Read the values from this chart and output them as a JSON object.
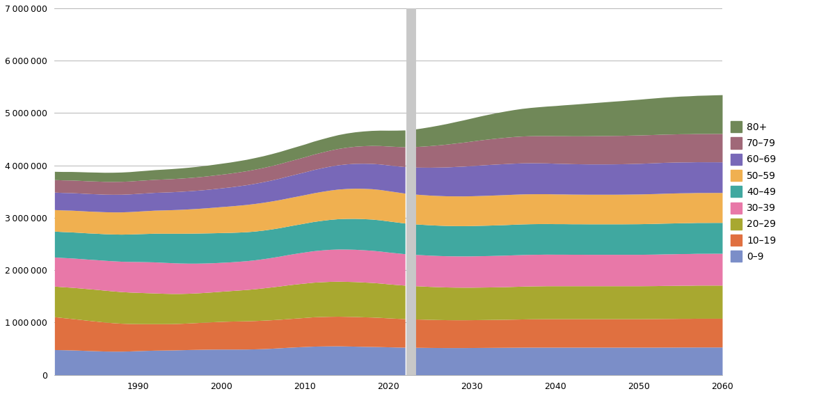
{
  "colors": {
    "0-9": "#7b8ec8",
    "10-19": "#e07040",
    "20-29": "#a8a830",
    "30-39": "#e878a8",
    "40-49": "#40a8a0",
    "50-59": "#f0b050",
    "60-69": "#7868b8",
    "70-79": "#a06878",
    "80+": "#708858"
  },
  "divider_year": 2022.7,
  "divider_color": "#c8c8c8",
  "background_color": "#ffffff",
  "ylim": [
    0,
    7000000
  ],
  "yticks": [
    0,
    1000000,
    2000000,
    3000000,
    4000000,
    5000000,
    6000000,
    7000000
  ],
  "xlim": [
    1980,
    2060
  ],
  "xticks": [
    1990,
    2000,
    2010,
    2020,
    2030,
    2040,
    2050,
    2060
  ],
  "hist_years": [
    1980,
    1981,
    1982,
    1983,
    1984,
    1985,
    1986,
    1987,
    1988,
    1989,
    1990,
    1991,
    1992,
    1993,
    1994,
    1995,
    1996,
    1997,
    1998,
    1999,
    2000,
    2001,
    2002,
    2003,
    2004,
    2005,
    2006,
    2007,
    2008,
    2009,
    2010,
    2011,
    2012,
    2013,
    2014,
    2015,
    2016,
    2017,
    2018,
    2019,
    2020,
    2021,
    2022
  ],
  "proj_years": [
    2023,
    2024,
    2025,
    2026,
    2027,
    2028,
    2029,
    2030,
    2031,
    2032,
    2033,
    2034,
    2035,
    2036,
    2037,
    2038,
    2039,
    2040,
    2041,
    2042,
    2043,
    2044,
    2045,
    2046,
    2047,
    2048,
    2049,
    2050,
    2051,
    2052,
    2053,
    2054,
    2055,
    2056,
    2057,
    2058,
    2059,
    2060
  ],
  "hist_data": {
    "0-9": [
      481000,
      478000,
      474000,
      469000,
      463000,
      458000,
      453000,
      451000,
      451000,
      454000,
      460000,
      465000,
      469000,
      471000,
      473000,
      477000,
      481000,
      484000,
      487000,
      489000,
      490000,
      490000,
      490000,
      491000,
      494000,
      499000,
      506000,
      515000,
      524000,
      532000,
      539000,
      546000,
      549000,
      551000,
      552000,
      549000,
      546000,
      542000,
      540000,
      537000,
      533000,
      529000,
      526000
    ],
    "10-19": [
      628000,
      613000,
      601000,
      589000,
      577000,
      566000,
      554000,
      543000,
      533000,
      524000,
      516000,
      510000,
      506000,
      504000,
      503000,
      504000,
      507000,
      512000,
      517000,
      523000,
      529000,
      534000,
      537000,
      539000,
      541000,
      543000,
      544000,
      545000,
      548000,
      551000,
      555000,
      560000,
      563000,
      565000,
      566000,
      566000,
      566000,
      564000,
      562000,
      558000,
      553000,
      549000,
      545000
    ],
    "20-29": [
      584000,
      590000,
      596000,
      600000,
      604000,
      607000,
      608000,
      607000,
      604000,
      601000,
      597000,
      592000,
      587000,
      581000,
      576000,
      571000,
      568000,
      567000,
      568000,
      571000,
      576000,
      582000,
      590000,
      598000,
      607000,
      617000,
      627000,
      636000,
      645000,
      652000,
      657000,
      661000,
      664000,
      667000,
      668000,
      668000,
      667000,
      665000,
      661000,
      656000,
      650000,
      645000,
      640000
    ],
    "30-39": [
      556000,
      558000,
      560000,
      562000,
      564000,
      567000,
      571000,
      575000,
      580000,
      585000,
      589000,
      592000,
      593000,
      591000,
      588000,
      582000,
      575000,
      568000,
      562000,
      556000,
      552000,
      549000,
      549000,
      550000,
      553000,
      557000,
      563000,
      570000,
      578000,
      586000,
      594000,
      601000,
      607000,
      612000,
      615000,
      617000,
      617000,
      616000,
      614000,
      611000,
      607000,
      604000,
      600000
    ],
    "40-49": [
      494000,
      495000,
      497000,
      499000,
      501000,
      504000,
      507000,
      512000,
      517000,
      524000,
      531000,
      539000,
      548000,
      555000,
      562000,
      568000,
      572000,
      574000,
      574000,
      572000,
      568000,
      563000,
      558000,
      553000,
      549000,
      546000,
      544000,
      544000,
      545000,
      548000,
      552000,
      558000,
      565000,
      572000,
      579000,
      585000,
      590000,
      594000,
      596000,
      596000,
      594000,
      590000,
      586000
    ],
    "50-59": [
      411000,
      413000,
      415000,
      416000,
      417000,
      418000,
      420000,
      422000,
      425000,
      428000,
      432000,
      436000,
      440000,
      445000,
      450000,
      456000,
      463000,
      470000,
      478000,
      487000,
      496000,
      505000,
      513000,
      521000,
      527000,
      531000,
      534000,
      536000,
      538000,
      540000,
      543000,
      547000,
      553000,
      559000,
      566000,
      572000,
      576000,
      579000,
      580000,
      579000,
      577000,
      574000,
      571000
    ],
    "60-69": [
      334000,
      334000,
      335000,
      335000,
      335000,
      335000,
      335000,
      336000,
      337000,
      337000,
      338000,
      339000,
      340000,
      341000,
      342000,
      344000,
      346000,
      348000,
      350000,
      354000,
      358000,
      363000,
      370000,
      377000,
      385000,
      393000,
      401000,
      410000,
      419000,
      427000,
      435000,
      444000,
      451000,
      458000,
      464000,
      470000,
      475000,
      479000,
      483000,
      488000,
      493000,
      499000,
      506000
    ],
    "70-79": [
      239000,
      240000,
      241000,
      242000,
      243000,
      244000,
      245000,
      246000,
      247000,
      247000,
      248000,
      248000,
      249000,
      250000,
      251000,
      252000,
      253000,
      255000,
      257000,
      259000,
      261000,
      263000,
      265000,
      267000,
      270000,
      272000,
      275000,
      278000,
      281000,
      285000,
      289000,
      294000,
      299000,
      305000,
      312000,
      319000,
      327000,
      335000,
      343000,
      352000,
      361000,
      370000,
      380000
    ],
    "80+": [
      158000,
      161000,
      163000,
      166000,
      169000,
      171000,
      173000,
      175000,
      177000,
      179000,
      181000,
      183000,
      185000,
      188000,
      191000,
      194000,
      197000,
      200000,
      203000,
      206000,
      209000,
      212000,
      215000,
      218000,
      221000,
      224000,
      228000,
      231000,
      235000,
      239000,
      243000,
      248000,
      253000,
      258000,
      264000,
      270000,
      275000,
      281000,
      287000,
      294000,
      302000,
      311000,
      321000
    ]
  },
  "proj_data": {
    "0-9": [
      524000,
      523000,
      521000,
      520000,
      519000,
      519000,
      519000,
      520000,
      521000,
      522000,
      523000,
      524000,
      525000,
      526000,
      527000,
      527000,
      527000,
      527000,
      527000,
      527000,
      527000,
      527000,
      527000,
      527000,
      527000,
      527000,
      527000,
      527000,
      527000,
      527000,
      528000,
      528000,
      529000,
      529000,
      530000,
      530000,
      530000,
      530000
    ],
    "10-19": [
      542000,
      539000,
      536000,
      534000,
      532000,
      531000,
      531000,
      531000,
      532000,
      533000,
      534000,
      535000,
      537000,
      539000,
      541000,
      542000,
      543000,
      543000,
      543000,
      543000,
      543000,
      543000,
      543000,
      543000,
      543000,
      543000,
      543000,
      543000,
      544000,
      545000,
      546000,
      547000,
      548000,
      548000,
      549000,
      549000,
      549000,
      549000
    ],
    "20-29": [
      636000,
      633000,
      630000,
      627000,
      625000,
      623000,
      622000,
      621000,
      621000,
      621000,
      622000,
      623000,
      625000,
      627000,
      628000,
      629000,
      630000,
      630000,
      630000,
      630000,
      630000,
      630000,
      630000,
      630000,
      630000,
      630000,
      630000,
      630000,
      630000,
      630000,
      631000,
      631000,
      632000,
      632000,
      633000,
      633000,
      633000,
      633000
    ],
    "30-39": [
      598000,
      597000,
      596000,
      596000,
      596000,
      597000,
      597000,
      598000,
      599000,
      600000,
      601000,
      602000,
      603000,
      603000,
      603000,
      603000,
      603000,
      602000,
      602000,
      601000,
      601000,
      600000,
      600000,
      600000,
      600000,
      600000,
      600000,
      600000,
      601000,
      602000,
      603000,
      604000,
      605000,
      606000,
      607000,
      607000,
      608000,
      608000
    ],
    "40-49": [
      583000,
      581000,
      580000,
      579000,
      578000,
      578000,
      578000,
      579000,
      580000,
      581000,
      582000,
      583000,
      584000,
      585000,
      585000,
      585000,
      584000,
      583000,
      583000,
      582000,
      582000,
      582000,
      582000,
      582000,
      582000,
      582000,
      583000,
      584000,
      585000,
      586000,
      587000,
      588000,
      588000,
      589000,
      589000,
      589000,
      589000,
      589000
    ],
    "50-59": [
      569000,
      568000,
      567000,
      567000,
      567000,
      568000,
      568000,
      569000,
      570000,
      571000,
      572000,
      573000,
      573000,
      573000,
      572000,
      571000,
      570000,
      568000,
      567000,
      566000,
      565000,
      565000,
      565000,
      565000,
      565000,
      566000,
      567000,
      568000,
      569000,
      570000,
      571000,
      572000,
      572000,
      572000,
      572000,
      572000,
      572000,
      572000
    ],
    "60-69": [
      514000,
      523000,
      533000,
      543000,
      552000,
      561000,
      569000,
      576000,
      582000,
      587000,
      590000,
      592000,
      593000,
      593000,
      592000,
      590000,
      588000,
      586000,
      584000,
      582000,
      580000,
      579000,
      579000,
      579000,
      580000,
      581000,
      583000,
      585000,
      587000,
      589000,
      590000,
      590000,
      590000,
      589000,
      588000,
      587000,
      586000,
      585000
    ],
    "70-79": [
      390000,
      401000,
      413000,
      424000,
      436000,
      447000,
      458000,
      469000,
      479000,
      488000,
      496000,
      503000,
      509000,
      513000,
      517000,
      520000,
      523000,
      526000,
      529000,
      532000,
      535000,
      538000,
      540000,
      542000,
      543000,
      543000,
      543000,
      542000,
      541000,
      540000,
      539000,
      538000,
      538000,
      538000,
      539000,
      540000,
      541000,
      542000
    ],
    "80+": [
      333000,
      347000,
      362000,
      377000,
      393000,
      409000,
      425000,
      441000,
      457000,
      472000,
      487000,
      501000,
      514000,
      527000,
      539000,
      551000,
      563000,
      576000,
      589000,
      602000,
      614000,
      625000,
      635000,
      645000,
      655000,
      664000,
      673000,
      682000,
      691000,
      699000,
      706000,
      713000,
      719000,
      724000,
      729000,
      733000,
      737000,
      741000
    ]
  }
}
